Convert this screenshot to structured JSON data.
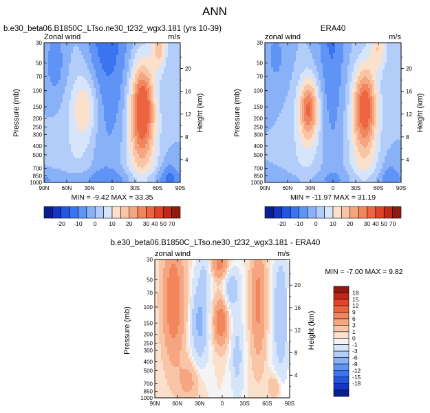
{
  "main_title": "ANN",
  "colors": {
    "blues": [
      "#0a1f8f",
      "#1535c2",
      "#2356e0",
      "#3c74ef",
      "#5f93f5",
      "#88b1f8",
      "#b2cdfa",
      "#d7e5fb"
    ],
    "neutral": "#f4f4f4",
    "reds": [
      "#fbe0cc",
      "#f8c5a6",
      "#f5a680",
      "#f1865d",
      "#ec6540",
      "#dd4429",
      "#c12818",
      "#8f1a10"
    ]
  },
  "chart_data": [
    {
      "id": "model",
      "type": "contour",
      "title": "b.e30_beta06.B1850C_LTso.ne30_t232_wgx3.181 (yrs 10-39)",
      "left_label": "Zonal wind",
      "right_label": "m/s",
      "ylabel": "Pressure (mb)",
      "ylabel_right": "Height (km)",
      "x_ticks": [
        "90N",
        "60N",
        "30N",
        "0",
        "30S",
        "60S",
        "90S"
      ],
      "y_ticks": [
        "30",
        "50",
        "70",
        "100",
        "150",
        "200",
        "250",
        "300",
        "400",
        "500",
        "700",
        "850",
        "1000"
      ],
      "height_ticks": [
        "4",
        "8",
        "12",
        "16",
        "20"
      ],
      "min_max": "MIN = -9.42   MAX = 33.35",
      "xlim": [
        90,
        -90
      ],
      "ylim": [
        1000,
        30
      ],
      "levels": [
        -25,
        -20,
        -15,
        -10,
        -5,
        0,
        5,
        10,
        15,
        20,
        25,
        30,
        40,
        50,
        60,
        70
      ]
    },
    {
      "id": "obs",
      "type": "contour",
      "title": "ERA40",
      "left_label": "zonal wind",
      "right_label": "m/s",
      "ylabel": "Pressure (mb)",
      "ylabel_right": "Height (km)",
      "x_ticks": [
        "90N",
        "60N",
        "30N",
        "0",
        "30S",
        "60S",
        "90S"
      ],
      "y_ticks": [
        "30",
        "50",
        "70",
        "100",
        "150",
        "200",
        "250",
        "300",
        "400",
        "500",
        "700",
        "850",
        "1000"
      ],
      "height_ticks": [
        "4",
        "8",
        "12",
        "16",
        "20"
      ],
      "min_max": "MIN = -11.97   MAX = 31.19",
      "xlim": [
        90,
        -90
      ],
      "ylim": [
        1000,
        30
      ],
      "levels": [
        -25,
        -20,
        -15,
        -10,
        -5,
        0,
        5,
        10,
        15,
        20,
        25,
        30,
        40,
        50,
        60,
        70
      ]
    },
    {
      "id": "diff",
      "type": "contour",
      "title": "b.e30_beta06.B1850C_LTso.ne30_t232_wgx3.181 - ERA40",
      "left_label": "zonal wind",
      "right_label": "m/s",
      "ylabel": "Pressure (mb)",
      "ylabel_right": "Height (km)",
      "x_ticks": [
        "90N",
        "60N",
        "30N",
        "0",
        "30S",
        "60S",
        "90S"
      ],
      "y_ticks": [
        "30",
        "50",
        "70",
        "100",
        "150",
        "200",
        "250",
        "300",
        "400",
        "500",
        "700",
        "850",
        "1000"
      ],
      "height_ticks": [
        "4",
        "8",
        "12",
        "16",
        "20"
      ],
      "min_max": "MIN = -7.00   MAX =  9.82",
      "xlim": [
        90,
        -90
      ],
      "ylim": [
        1000,
        30
      ],
      "levels": [
        -21,
        -18,
        -15,
        -12,
        -9,
        -6,
        -3,
        -1,
        0,
        1,
        3,
        6,
        9,
        12,
        15,
        18,
        21
      ]
    }
  ],
  "colorbar_top": {
    "labels": [
      "-20",
      "-10",
      "0",
      "10",
      "20",
      "30",
      "40",
      "50",
      "70"
    ]
  },
  "colorbar_diff": {
    "labels": [
      "18",
      "15",
      "12",
      "9",
      "6",
      "3",
      "1",
      "0",
      "-1",
      "-3",
      "-6",
      "-9",
      "-12",
      "-15",
      "-18"
    ]
  }
}
